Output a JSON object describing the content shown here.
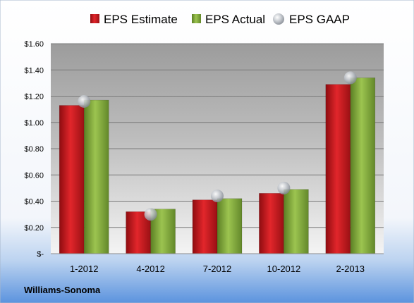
{
  "company": "Williams-Sonoma",
  "colors": {
    "estimate": "#c0181c",
    "actual": "#7ea83a",
    "gaap": "#b8bcc2"
  },
  "chart_data": {
    "type": "bar",
    "categories": [
      "1-2012",
      "4-2012",
      "7-2012",
      "10-2012",
      "2-2013"
    ],
    "series": [
      {
        "name": "EPS Estimate",
        "kind": "bar",
        "values": [
          1.13,
          0.32,
          0.41,
          0.46,
          1.29
        ]
      },
      {
        "name": "EPS Actual",
        "kind": "bar",
        "values": [
          1.17,
          0.34,
          0.42,
          0.49,
          1.34
        ]
      },
      {
        "name": "EPS GAAP",
        "kind": "marker",
        "values": [
          1.16,
          0.3,
          0.44,
          0.5,
          1.34
        ]
      }
    ],
    "ylim": [
      0,
      1.6
    ],
    "yticks": [
      0,
      0.2,
      0.4,
      0.6,
      0.8,
      1.0,
      1.2,
      1.4,
      1.6
    ],
    "ytick_labels": [
      "$-",
      "$0.20",
      "$0.40",
      "$0.60",
      "$0.80",
      "$1.00",
      "$1.20",
      "$1.40",
      "$1.60"
    ],
    "grid": true,
    "legend": "top"
  }
}
